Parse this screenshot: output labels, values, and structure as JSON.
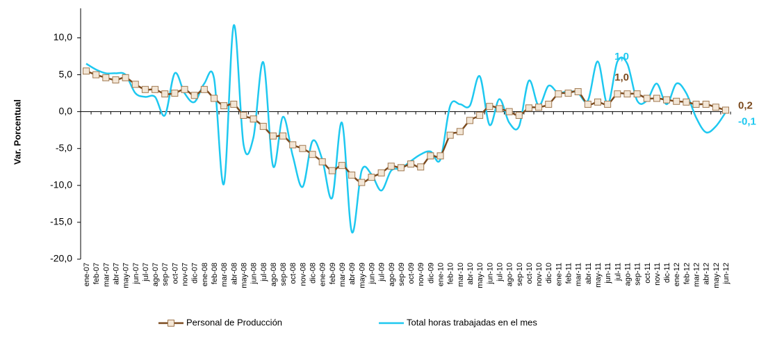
{
  "chart_data": {
    "type": "line",
    "y_label": "Var. Porcentual",
    "categories": [
      "ene-07",
      "feb-07",
      "mar-07",
      "abr-07",
      "may-07",
      "jun-07",
      "jul-07",
      "ago-07",
      "sep-07",
      "oct-07",
      "nov-07",
      "dic-07",
      "ene-08",
      "feb-08",
      "mar-08",
      "abr-08",
      "may-08",
      "jun-08",
      "jul-08",
      "ago-08",
      "sep-08",
      "oct-08",
      "nov-08",
      "dic-08",
      "ene-09",
      "feb-09",
      "mar-09",
      "abr-09",
      "may-09",
      "jun-09",
      "jul-09",
      "ago-09",
      "sep-09",
      "oct-09",
      "nov-09",
      "dic-09",
      "ene-10",
      "feb-10",
      "mar-10",
      "abr-10",
      "may-10",
      "jun-10",
      "jul-10",
      "ago-10",
      "sep-10",
      "oct-10",
      "nov-10",
      "dic-10",
      "ene-11",
      "feb-11",
      "mar-11",
      "abr-11",
      "may-11",
      "jun-11",
      "jul-11",
      "ago-11",
      "sep-11",
      "oct-11",
      "nov-11",
      "dic-11",
      "ene-12",
      "feb-12",
      "mar-12",
      "abr-12",
      "may-12",
      "jun-12"
    ],
    "series": [
      {
        "name": "Personal de Producción",
        "color": "#7b4a1e",
        "marker": "square",
        "values": [
          5.5,
          5.0,
          4.6,
          4.3,
          4.6,
          3.7,
          3.0,
          3.0,
          2.4,
          2.5,
          3.0,
          2.2,
          3.0,
          1.8,
          0.8,
          1.0,
          -0.5,
          -1.0,
          -2.0,
          -3.3,
          -3.3,
          -4.5,
          -5.0,
          -5.8,
          -6.8,
          -8.0,
          -7.3,
          -8.6,
          -9.6,
          -8.9,
          -8.3,
          -7.4,
          -7.6,
          -7.1,
          -7.5,
          -6.0,
          -6.0,
          -3.2,
          -2.7,
          -1.2,
          -0.5,
          0.7,
          0.4,
          0.0,
          -0.5,
          0.5,
          0.6,
          1.0,
          2.4,
          2.5,
          2.7,
          1.0,
          1.3,
          1.0,
          2.4,
          2.4,
          2.4,
          1.8,
          1.8,
          1.6,
          1.4,
          1.3,
          1.0,
          1.0,
          0.6,
          0.2
        ],
        "value_labels": [
          null,
          null,
          null,
          null,
          null,
          null,
          null,
          null,
          null,
          null,
          null,
          null,
          null,
          null,
          null,
          null,
          null,
          null,
          null,
          null,
          null,
          null,
          null,
          null,
          null,
          null,
          null,
          null,
          null,
          null,
          null,
          null,
          null,
          null,
          null,
          null,
          null,
          null,
          null,
          null,
          null,
          null,
          null,
          null,
          null,
          null,
          null,
          null,
          null,
          null,
          null,
          null,
          null,
          "1,0",
          null,
          null,
          null,
          null,
          null,
          null,
          null,
          null,
          null,
          null,
          null,
          "0,2"
        ]
      },
      {
        "name": "Total horas trabajadas en el mes",
        "color": "#1ec8f0",
        "marker": "none",
        "values": [
          6.5,
          5.7,
          5.2,
          5.2,
          5.0,
          2.5,
          2.0,
          2.0,
          -0.5,
          5.2,
          2.5,
          1.3,
          3.8,
          4.5,
          -9.8,
          11.7,
          -4.5,
          -3.5,
          6.7,
          -7.4,
          -0.7,
          -6.0,
          -10.2,
          -4.0,
          -6.5,
          -11.7,
          -1.5,
          -16.3,
          -8.0,
          -8.5,
          -10.7,
          -8.0,
          -7.7,
          -6.7,
          -5.8,
          -5.4,
          -6.5,
          0.8,
          1.0,
          0.8,
          4.8,
          -1.8,
          1.7,
          -1.5,
          -2.0,
          4.2,
          0.8,
          3.5,
          2.5,
          2.8,
          2.5,
          1.5,
          6.8,
          1.0,
          6.8,
          6.5,
          1.5,
          1.5,
          3.8,
          1.0,
          3.8,
          2.5,
          -0.8,
          -2.8,
          -2.0,
          -0.1
        ],
        "value_labels": [
          null,
          null,
          null,
          null,
          null,
          null,
          null,
          null,
          null,
          null,
          null,
          null,
          null,
          null,
          null,
          null,
          null,
          null,
          null,
          null,
          null,
          null,
          null,
          null,
          null,
          null,
          null,
          null,
          null,
          null,
          null,
          null,
          null,
          null,
          null,
          null,
          null,
          null,
          null,
          null,
          null,
          null,
          null,
          null,
          null,
          null,
          null,
          null,
          null,
          null,
          null,
          null,
          null,
          "1,0",
          null,
          null,
          null,
          null,
          null,
          null,
          null,
          null,
          null,
          null,
          null,
          "-0,1"
        ]
      }
    ],
    "ylim": [
      -20,
      14
    ],
    "yticks": [
      {
        "value": -20,
        "label": "-20,0"
      },
      {
        "value": -15,
        "label": "-15,0"
      },
      {
        "value": -10,
        "label": "-10,0"
      },
      {
        "value": -5,
        "label": "-5,0"
      },
      {
        "value": 0,
        "label": "0,0"
      },
      {
        "value": 5,
        "label": "5,0"
      },
      {
        "value": 10,
        "label": "10,0"
      }
    ],
    "legend": "bottom"
  }
}
